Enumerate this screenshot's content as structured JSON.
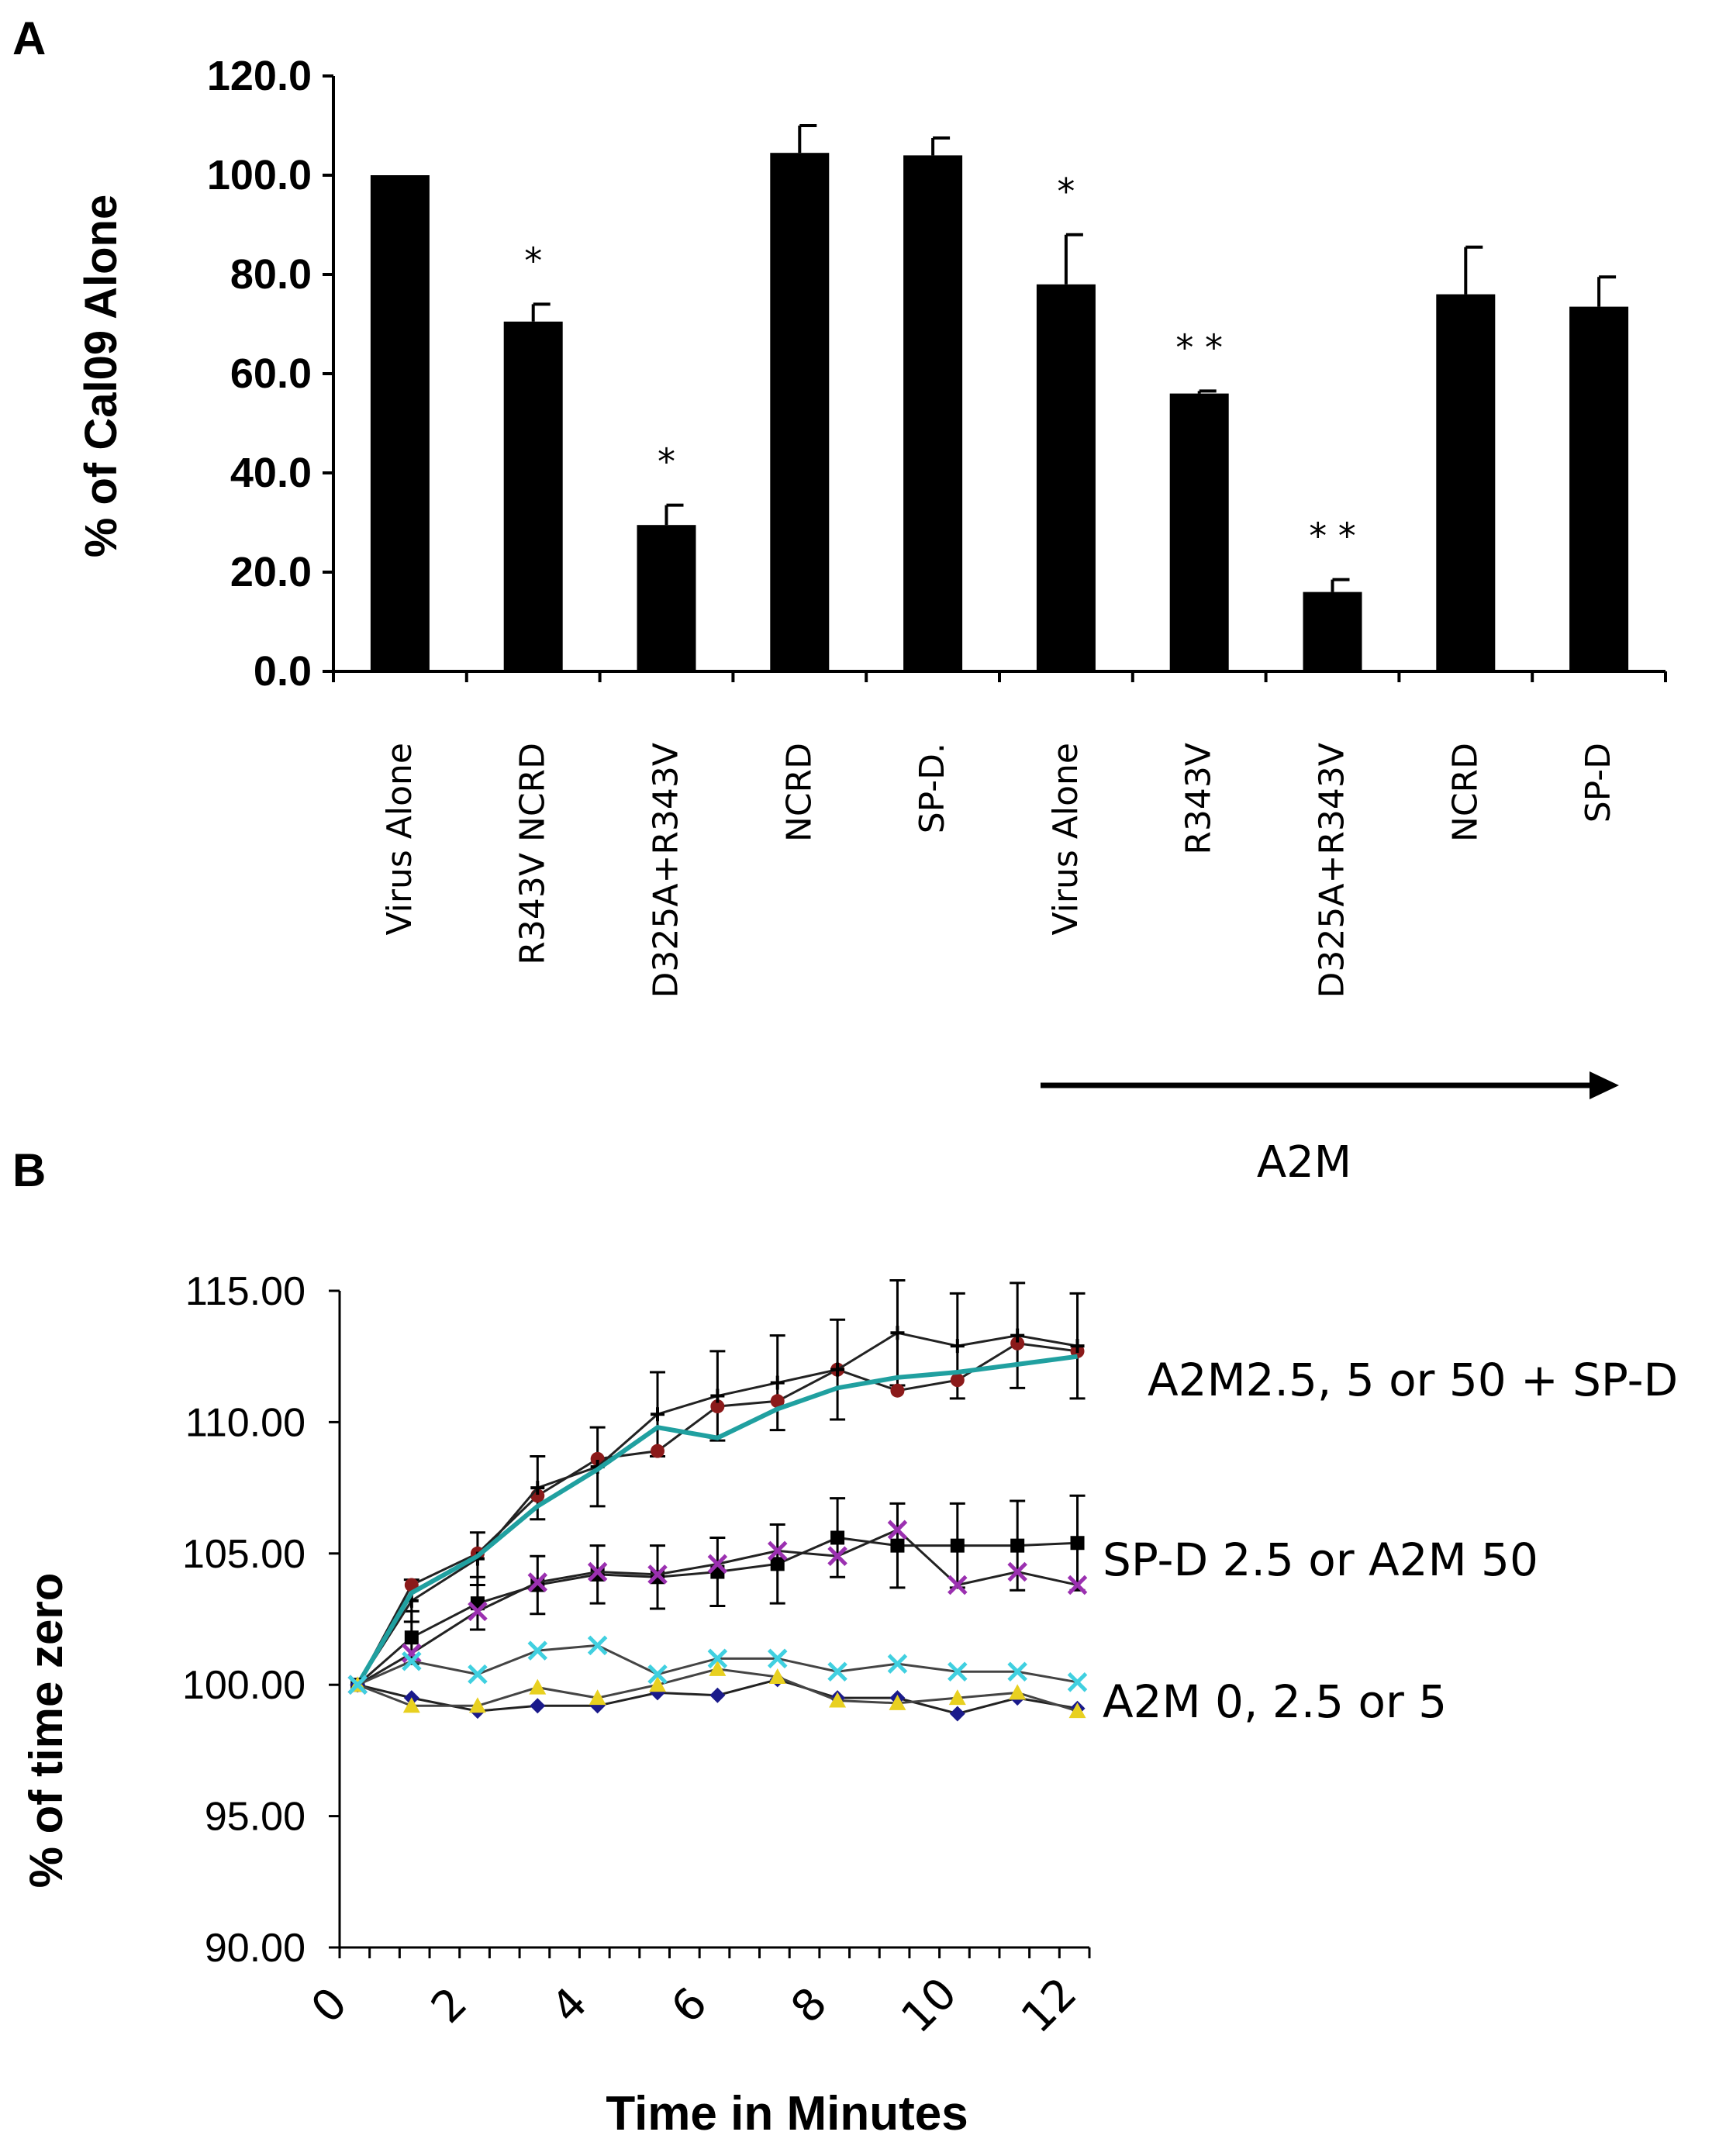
{
  "chart_data": [
    {
      "panel": "A",
      "type": "bar",
      "ylabel": "% of Cal09  Alone",
      "ylim": [
        0,
        120
      ],
      "yticks": [
        "0.0",
        "20.0",
        "40.0",
        "60.0",
        "80.0",
        "100.0",
        "120.0"
      ],
      "categories": [
        "Virus Alone",
        "R343V NCRD",
        "D325A+R343V",
        "NCRD",
        "SP-D.",
        "Virus Alone",
        "R343V",
        "D325A+R343V",
        "NCRD",
        "SP-D"
      ],
      "values": [
        100.0,
        70.5,
        29.5,
        104.5,
        104.0,
        78.0,
        56.0,
        16.0,
        76.0,
        73.5
      ],
      "errors": [
        0,
        3.5,
        4.0,
        5.5,
        3.5,
        10.0,
        0.5,
        2.5,
        9.5,
        6.0
      ],
      "significance": [
        "",
        "*",
        "*",
        "",
        "",
        "*",
        "**",
        "**",
        "",
        ""
      ],
      "bracket_label": "A2M",
      "bracket_range": [
        "Virus Alone",
        "SP-D"
      ],
      "color": "#000000"
    },
    {
      "panel": "B",
      "type": "line",
      "xlabel": "Time in Minutes",
      "ylabel": "% of time zero",
      "xlim": [
        0,
        12.5
      ],
      "ylim": [
        90,
        115
      ],
      "yticks": [
        "90.00",
        "95.00",
        "100.00",
        "105.00",
        "110.00",
        "115.00"
      ],
      "xticks": [
        "0",
        "2",
        "4",
        "6",
        "8",
        "10",
        "12"
      ],
      "x": [
        0.3,
        1.2,
        2.3,
        3.3,
        4.3,
        5.3,
        6.3,
        7.3,
        8.3,
        9.3,
        10.3,
        11.3,
        12.3
      ],
      "series": [
        {
          "name": "A2M 50 + SP-D",
          "color": "#8b1a1a",
          "marker": "circle",
          "values": [
            100.0,
            103.8,
            105.0,
            107.2,
            108.6,
            108.9,
            110.6,
            110.8,
            112.0,
            111.2,
            111.6,
            113.0,
            112.7
          ]
        },
        {
          "name": "A2M 5 + SP-D",
          "color": "#000000",
          "marker": "plus",
          "values": [
            100.0,
            103.2,
            104.8,
            107.5,
            108.3,
            110.3,
            111.0,
            111.5,
            112.0,
            113.4,
            112.9,
            113.3,
            112.9
          ]
        },
        {
          "name": "A2M 2.5 + SP-D",
          "color": "#20a0a0",
          "marker": "none",
          "values": [
            100.0,
            103.5,
            104.9,
            106.8,
            108.2,
            109.8,
            109.4,
            110.5,
            111.3,
            111.7,
            111.9,
            112.2,
            112.5
          ]
        },
        {
          "name": "SP-D 2.5",
          "color": "#000000",
          "marker": "square",
          "values": [
            100.0,
            101.8,
            103.1,
            103.8,
            104.2,
            104.1,
            104.3,
            104.6,
            105.6,
            105.3,
            105.3,
            105.3,
            105.4
          ]
        },
        {
          "name": "A2M 50",
          "color": "#9b30b0",
          "marker": "x",
          "values": [
            100.0,
            101.2,
            102.8,
            103.9,
            104.3,
            104.2,
            104.6,
            105.1,
            104.9,
            105.9,
            103.8,
            104.3,
            103.8
          ]
        },
        {
          "name": "A2M 0",
          "color": "#1a1a8b",
          "marker": "diamond",
          "values": [
            100.0,
            99.5,
            99.0,
            99.2,
            99.2,
            99.7,
            99.6,
            100.2,
            99.5,
            99.5,
            98.9,
            99.5,
            99.1
          ]
        },
        {
          "name": "A2M 2.5",
          "color": "#e8d020",
          "marker": "triangle",
          "values": [
            100.0,
            99.2,
            99.2,
            99.9,
            99.5,
            100.0,
            100.6,
            100.3,
            99.4,
            99.3,
            99.5,
            99.7,
            99.0
          ]
        },
        {
          "name": "A2M 5",
          "color": "#40d0e0",
          "marker": "x",
          "values": [
            100.0,
            100.9,
            100.4,
            101.3,
            101.5,
            100.4,
            101.0,
            101.0,
            100.5,
            100.8,
            100.5,
            100.5,
            100.1
          ]
        }
      ],
      "errors_upper": [
        {
          "series": "A2M 5 + SP-D",
          "values": [
            0,
            0.8,
            1.0,
            1.2,
            1.5,
            1.6,
            1.7,
            1.8,
            1.9,
            2.0,
            2.0,
            2.0,
            2.0
          ]
        },
        {
          "series": "SP-D 2.5",
          "values": [
            0,
            1.0,
            1.0,
            1.1,
            1.1,
            1.2,
            1.3,
            1.5,
            1.5,
            1.6,
            1.6,
            1.7,
            1.8
          ]
        }
      ],
      "annotations": [
        "A2M2.5, 5 or 50 + SP-D",
        "SP-D 2.5 or A2M 50",
        "A2M 0, 2.5 or 5"
      ]
    }
  ],
  "panel_labels": [
    "A",
    "B"
  ]
}
